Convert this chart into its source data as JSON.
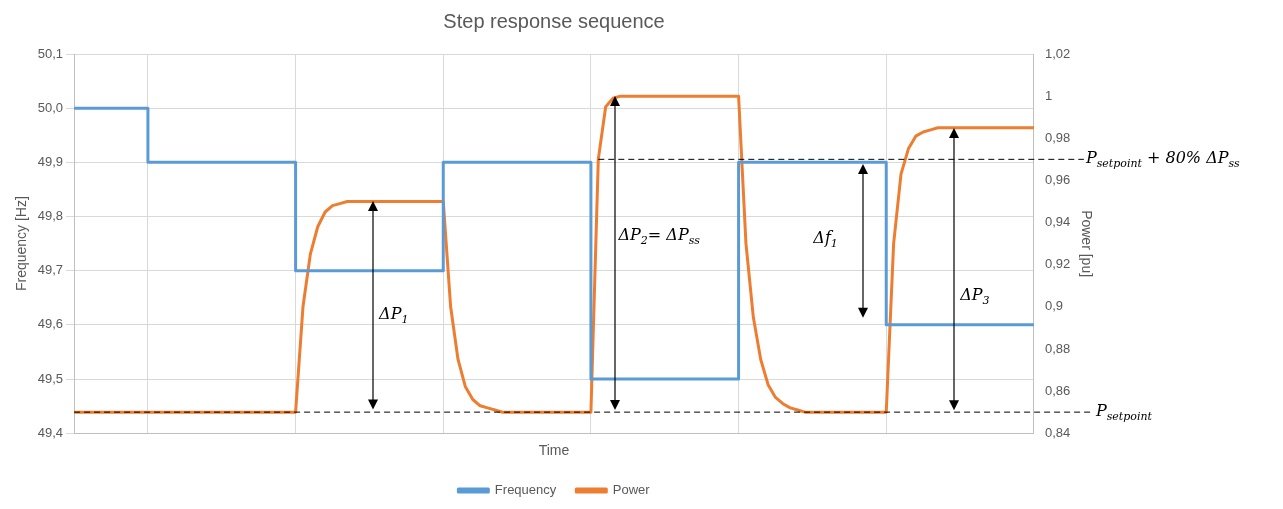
{
  "chart_data": {
    "type": "line",
    "title": "Step response sequence",
    "xlabel": "Time",
    "ylabel": "Frequency [Hz]",
    "y2label": "Power [pu]",
    "categories": [
      null,
      null,
      null,
      null,
      null,
      null,
      null,
      null,
      null,
      null,
      null,
      null,
      null,
      null,
      null,
      null,
      null,
      null,
      null,
      null,
      null,
      null,
      null,
      null,
      null,
      null,
      null,
      null,
      null,
      null,
      null,
      null,
      null,
      null,
      null,
      null,
      null,
      null,
      null,
      null,
      null,
      null,
      null,
      null,
      null,
      null,
      null,
      null,
      null,
      null,
      null,
      null,
      null,
      null,
      null,
      null,
      null,
      null,
      null,
      null,
      null,
      null,
      null,
      null,
      null,
      null,
      null,
      null,
      null,
      null,
      null,
      null,
      null,
      null,
      null,
      null,
      null,
      null,
      null,
      null,
      null,
      null,
      null,
      null,
      null,
      null,
      null,
      null,
      null,
      null,
      null,
      null,
      null,
      null,
      null,
      null,
      null,
      null,
      null,
      null,
      null,
      null,
      null,
      null,
      null,
      null,
      null,
      null,
      null,
      null,
      null,
      null,
      null,
      null,
      null,
      null,
      null,
      null,
      null,
      null,
      null,
      null,
      null,
      null,
      null,
      null,
      null,
      null,
      null,
      null,
      null
    ],
    "ylim": [
      49.4,
      50.1
    ],
    "yticks": [
      {
        "value": 49.4,
        "label": "49,4"
      },
      {
        "value": 49.5,
        "label": "49,5"
      },
      {
        "value": 49.6,
        "label": "49,6"
      },
      {
        "value": 49.7,
        "label": "49,7"
      },
      {
        "value": 49.8,
        "label": "49,8"
      },
      {
        "value": 49.9,
        "label": "49,9"
      },
      {
        "value": 50.0,
        "label": "50,0"
      },
      {
        "value": 50.1,
        "label": "50,1"
      }
    ],
    "y2lim": [
      0.84,
      1.02
    ],
    "y2ticks": [
      {
        "value": 0.84,
        "label": "0,84"
      },
      {
        "value": 0.86,
        "label": "0,86"
      },
      {
        "value": 0.88,
        "label": "0,88"
      },
      {
        "value": 0.9,
        "label": "0,9"
      },
      {
        "value": 0.92,
        "label": "0,92"
      },
      {
        "value": 0.94,
        "label": "0,94"
      },
      {
        "value": 0.96,
        "label": "0,96"
      },
      {
        "value": 0.98,
        "label": "0,98"
      },
      {
        "value": 1,
        "label": "1"
      },
      {
        "value": 1.02,
        "label": "1,02"
      }
    ],
    "series": [
      {
        "name": "Frequency",
        "type": "step",
        "color": "#5b9bd5",
        "values": [
          50.0,
          50.0,
          50.0,
          50.0,
          50.0,
          50.0,
          50.0,
          50.0,
          50.0,
          50.0,
          49.9,
          49.9,
          49.9,
          49.9,
          49.9,
          49.9,
          49.9,
          49.9,
          49.9,
          49.9,
          49.9,
          49.9,
          49.9,
          49.9,
          49.9,
          49.9,
          49.9,
          49.9,
          49.9,
          49.9,
          49.7,
          49.7,
          49.7,
          49.7,
          49.7,
          49.7,
          49.7,
          49.7,
          49.7,
          49.7,
          49.7,
          49.7,
          49.7,
          49.7,
          49.7,
          49.7,
          49.7,
          49.7,
          49.7,
          49.7,
          49.9,
          49.9,
          49.9,
          49.9,
          49.9,
          49.9,
          49.9,
          49.9,
          49.9,
          49.9,
          49.9,
          49.9,
          49.9,
          49.9,
          49.9,
          49.9,
          49.9,
          49.9,
          49.9,
          49.9,
          49.5,
          49.5,
          49.5,
          49.5,
          49.5,
          49.5,
          49.5,
          49.5,
          49.5,
          49.5,
          49.5,
          49.5,
          49.5,
          49.5,
          49.5,
          49.5,
          49.5,
          49.5,
          49.5,
          49.5,
          49.9,
          49.9,
          49.9,
          49.9,
          49.9,
          49.9,
          49.9,
          49.9,
          49.9,
          49.9,
          49.9,
          49.9,
          49.9,
          49.9,
          49.9,
          49.9,
          49.9,
          49.9,
          49.9,
          49.9,
          49.6,
          49.6,
          49.6,
          49.6,
          49.6,
          49.6,
          49.6,
          49.6,
          49.6,
          49.6,
          49.6,
          49.6,
          49.6,
          49.6,
          49.6,
          49.6,
          49.6,
          49.6,
          49.6,
          49.6,
          49.6
        ]
      },
      {
        "name": "Power",
        "type": "line",
        "axis": "y2",
        "color": "#ed7d31",
        "values": [
          0.85,
          0.85,
          0.85,
          0.85,
          0.85,
          0.85,
          0.85,
          0.85,
          0.85,
          0.85,
          0.85,
          0.85,
          0.85,
          0.85,
          0.85,
          0.85,
          0.85,
          0.85,
          0.85,
          0.85,
          0.85,
          0.85,
          0.85,
          0.85,
          0.85,
          0.85,
          0.85,
          0.85,
          0.85,
          0.85,
          0.85,
          0.9,
          0.925,
          0.938,
          0.945,
          0.948,
          0.949,
          0.95,
          0.95,
          0.95,
          0.95,
          0.95,
          0.95,
          0.95,
          0.95,
          0.95,
          0.95,
          0.95,
          0.95,
          0.95,
          0.95,
          0.9,
          0.875,
          0.862,
          0.856,
          0.853,
          0.852,
          0.851,
          0.85,
          0.85,
          0.85,
          0.85,
          0.85,
          0.85,
          0.85,
          0.85,
          0.85,
          0.85,
          0.85,
          0.85,
          0.85,
          0.97,
          0.995,
          0.999,
          1.0,
          1.0,
          1.0,
          1.0,
          1.0,
          1.0,
          1.0,
          1.0,
          1.0,
          1.0,
          1.0,
          1.0,
          1.0,
          1.0,
          1.0,
          1.0,
          1.0,
          0.93,
          0.895,
          0.875,
          0.863,
          0.857,
          0.854,
          0.852,
          0.851,
          0.85,
          0.85,
          0.85,
          0.85,
          0.85,
          0.85,
          0.85,
          0.85,
          0.85,
          0.85,
          0.85,
          0.85,
          0.93,
          0.963,
          0.975,
          0.981,
          0.983,
          0.984,
          0.985,
          0.985,
          0.985,
          0.985,
          0.985,
          0.985,
          0.985,
          0.985,
          0.985,
          0.985,
          0.985,
          0.985,
          0.985,
          0.985
        ]
      }
    ],
    "ref_lines": [
      {
        "axis": "y2",
        "value": 0.85,
        "label": "P$_{setpoint}$",
        "color": "#000000",
        "line_style": "dashed"
      },
      {
        "axis": "y2",
        "value": 0.97,
        "label": "P$_{setpoint}$ + 80% ΔP$_{ss}$",
        "color": "#000000",
        "line_style": "dashed"
      }
    ],
    "annotations": [
      "ΔP$_{1}$",
      "ΔP$_{2}$=  ΔP$_{ss}$",
      "Δf$_{1}$",
      "ΔP$_{3}$"
    ],
    "grid": true,
    "legend": "bottom",
    "marker": "none",
    "line_style": "solid"
  }
}
